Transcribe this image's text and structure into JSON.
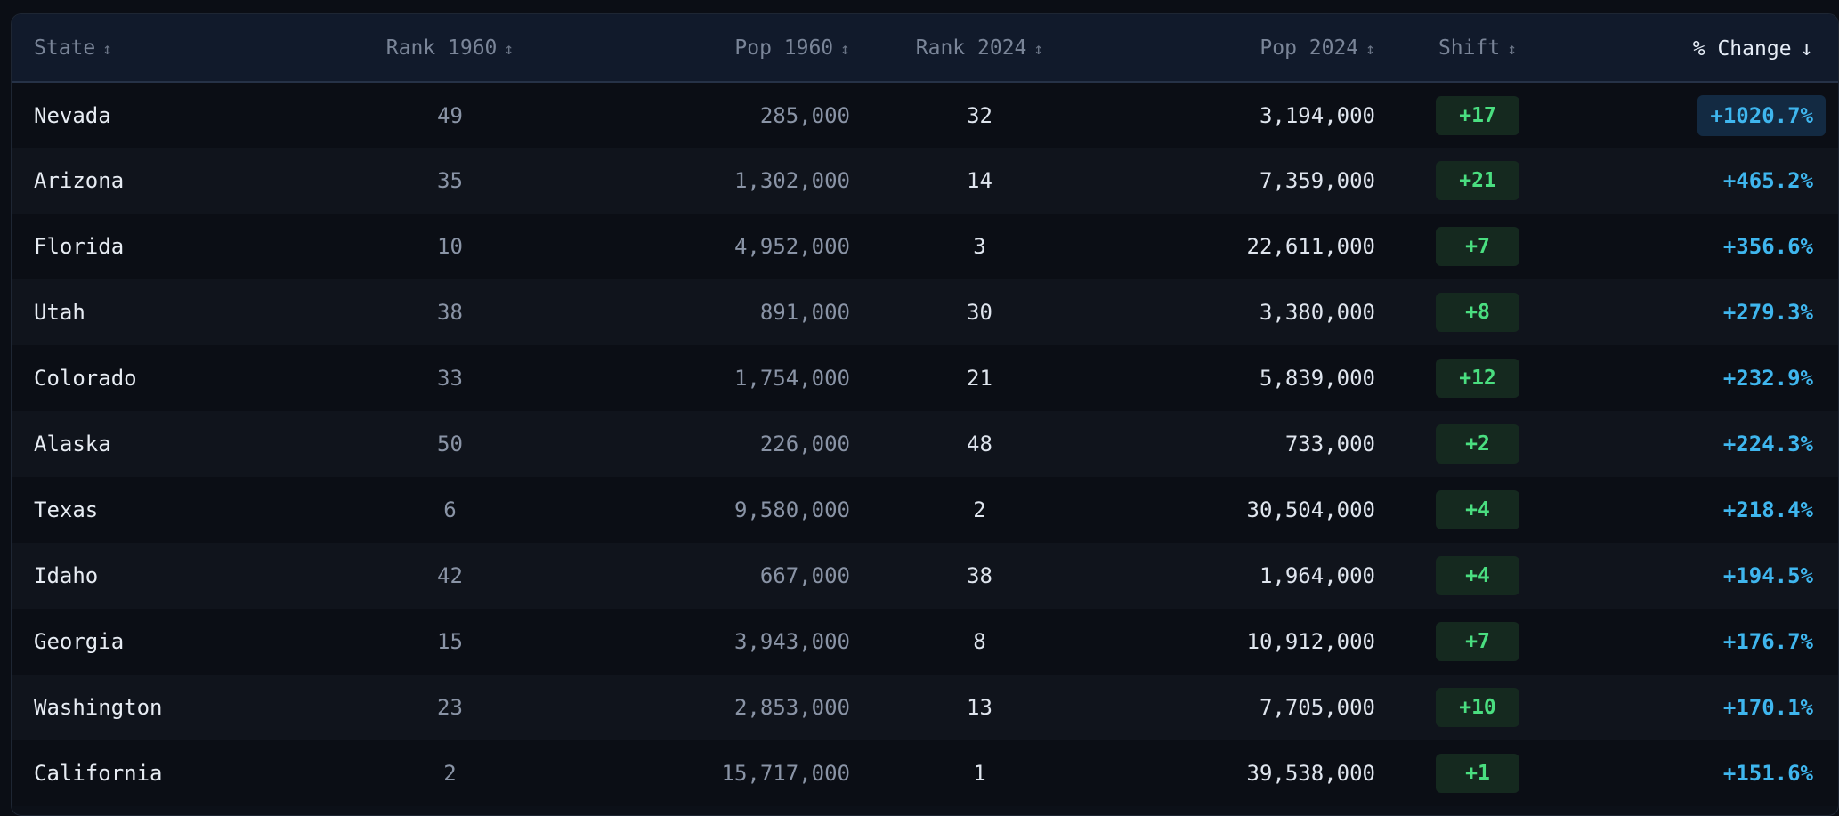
{
  "columns": [
    {
      "label": "State",
      "sort_icon": "↕"
    },
    {
      "label": "Rank 1960",
      "sort_icon": "↕"
    },
    {
      "label": "Pop 1960",
      "sort_icon": "↕"
    },
    {
      "label": "Rank 2024",
      "sort_icon": "↕"
    },
    {
      "label": "Pop 2024",
      "sort_icon": "↕"
    },
    {
      "label": "Shift",
      "sort_icon": "↕"
    },
    {
      "label": "% Change",
      "sort_icon": "↓"
    }
  ],
  "active_sort": {
    "column": "% Change",
    "direction": "descending"
  },
  "rows": [
    {
      "state": "Nevada",
      "rank_1960": "49",
      "pop_1960": "285,000",
      "rank_2024": "32",
      "pop_2024": "3,194,000",
      "shift": "+17",
      "pct_change": "+1020.7%"
    },
    {
      "state": "Arizona",
      "rank_1960": "35",
      "pop_1960": "1,302,000",
      "rank_2024": "14",
      "pop_2024": "7,359,000",
      "shift": "+21",
      "pct_change": "+465.2%"
    },
    {
      "state": "Florida",
      "rank_1960": "10",
      "pop_1960": "4,952,000",
      "rank_2024": "3",
      "pop_2024": "22,611,000",
      "shift": "+7",
      "pct_change": "+356.6%"
    },
    {
      "state": "Utah",
      "rank_1960": "38",
      "pop_1960": "891,000",
      "rank_2024": "30",
      "pop_2024": "3,380,000",
      "shift": "+8",
      "pct_change": "+279.3%"
    },
    {
      "state": "Colorado",
      "rank_1960": "33",
      "pop_1960": "1,754,000",
      "rank_2024": "21",
      "pop_2024": "5,839,000",
      "shift": "+12",
      "pct_change": "+232.9%"
    },
    {
      "state": "Alaska",
      "rank_1960": "50",
      "pop_1960": "226,000",
      "rank_2024": "48",
      "pop_2024": "733,000",
      "shift": "+2",
      "pct_change": "+224.3%"
    },
    {
      "state": "Texas",
      "rank_1960": "6",
      "pop_1960": "9,580,000",
      "rank_2024": "2",
      "pop_2024": "30,504,000",
      "shift": "+4",
      "pct_change": "+218.4%"
    },
    {
      "state": "Idaho",
      "rank_1960": "42",
      "pop_1960": "667,000",
      "rank_2024": "38",
      "pop_2024": "1,964,000",
      "shift": "+4",
      "pct_change": "+194.5%"
    },
    {
      "state": "Georgia",
      "rank_1960": "15",
      "pop_1960": "3,943,000",
      "rank_2024": "8",
      "pop_2024": "10,912,000",
      "shift": "+7",
      "pct_change": "+176.7%"
    },
    {
      "state": "Washington",
      "rank_1960": "23",
      "pop_1960": "2,853,000",
      "rank_2024": "13",
      "pop_2024": "7,705,000",
      "shift": "+10",
      "pct_change": "+170.1%"
    },
    {
      "state": "California",
      "rank_1960": "2",
      "pop_1960": "15,717,000",
      "rank_2024": "1",
      "pop_2024": "39,538,000",
      "shift": "+1",
      "pct_change": "+151.6%"
    }
  ],
  "colors": {
    "background": "#0b0e15",
    "header_bg": "#111a2b",
    "shift_badge_bg": "#15291f",
    "shift_text": "#4ade80",
    "pct_text": "#3fb6ee",
    "highlight_bg": "#132a42"
  }
}
